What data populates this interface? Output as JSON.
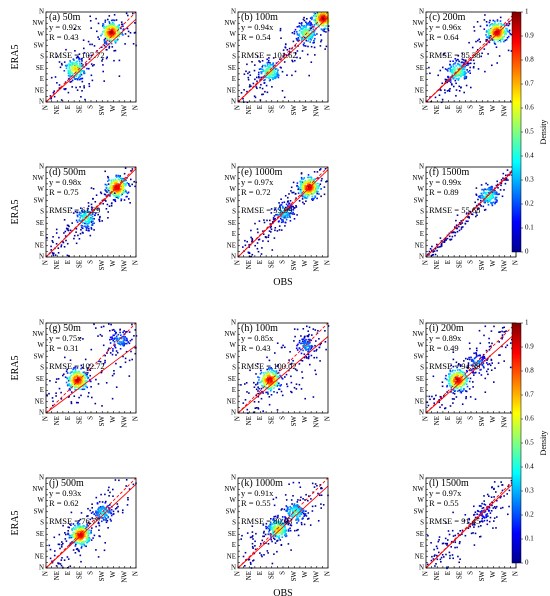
{
  "figure": {
    "colorbar_label": "Density",
    "colorbar_ticks": [
      "1",
      "0.9",
      "0.8",
      "0.7",
      "0.6",
      "0.5",
      "0.4",
      "0.3",
      "0.2",
      "0.1",
      "0"
    ],
    "colormap": [
      "#00008f",
      "#0000ff",
      "#0080ff",
      "#00ffff",
      "#80ff80",
      "#ffff00",
      "#ff8000",
      "#ff0000",
      "#800000"
    ]
  },
  "chart_data": [
    {
      "type": "scatter",
      "panel": "(a) 50m",
      "slope": "y = 0.92x",
      "r": "R = 0.43",
      "rmse": "RMSE = 107.72",
      "xlabel": "",
      "ylabel": "ERA5",
      "clusters": [
        {
          "x": 11.5,
          "y": 12.5,
          "w": 1.0
        },
        {
          "x": 5,
          "y": 6,
          "w": 0.7
        }
      ],
      "spread": 4.5
    },
    {
      "type": "scatter",
      "panel": "(b) 100m",
      "slope": "y = 0.94x",
      "r": "R = 0.54",
      "rmse": "RMSE = 101.62",
      "xlabel": "",
      "ylabel": "",
      "clusters": [
        {
          "x": 15,
          "y": 15,
          "w": 1.0
        },
        {
          "x": 12,
          "y": 12.3,
          "w": 0.6
        },
        {
          "x": 5.5,
          "y": 5.5,
          "w": 0.6
        }
      ],
      "spread": 3.5
    },
    {
      "type": "scatter",
      "panel": "(c) 200m",
      "slope": "y = 0.96x",
      "r": "R = 0.64",
      "rmse": "RMSE = 85.38",
      "xlabel": "",
      "ylabel": "",
      "clusters": [
        {
          "x": 12.5,
          "y": 12.5,
          "w": 1.0
        },
        {
          "x": 5.5,
          "y": 5.5,
          "w": 0.6
        }
      ],
      "spread": 3.0
    },
    {
      "type": "scatter",
      "panel": "(d) 500m",
      "slope": "y = 0.98x",
      "r": "R = 0.75",
      "rmse": "RMSE = 61.29",
      "xlabel": "",
      "ylabel": "ERA5",
      "clusters": [
        {
          "x": 12.5,
          "y": 12.5,
          "w": 1.0
        },
        {
          "x": 7,
          "y": 7,
          "w": 0.5
        }
      ],
      "spread": 2.0
    },
    {
      "type": "scatter",
      "panel": "(e) 1000m",
      "slope": "y = 0.97x",
      "r": "R = 0.72",
      "rmse": "RMSE = 53.99",
      "xlabel": "OBS",
      "ylabel": "",
      "clusters": [
        {
          "x": 12.5,
          "y": 12.5,
          "w": 1.0
        },
        {
          "x": 8,
          "y": 8,
          "w": 0.4
        }
      ],
      "spread": 1.8
    },
    {
      "type": "scatter",
      "panel": "(f) 1500m",
      "slope": "y = 0.99x",
      "r": "R = 0.89",
      "rmse": "RMSE = 55.68",
      "xlabel": "",
      "ylabel": "",
      "clusters": [
        {
          "x": 11,
          "y": 11,
          "w": 0.5
        }
      ],
      "spread": 0.8
    },
    {
      "type": "scatter",
      "panel": "(g) 50m",
      "slope": "y = 0.75x",
      "r": "R = 0.31",
      "rmse": "RMSE = 102.72",
      "xlabel": "",
      "ylabel": "ERA5",
      "clusters": [
        {
          "x": 5.5,
          "y": 6,
          "w": 1.0
        },
        {
          "x": 13,
          "y": 13,
          "w": 0.3
        }
      ],
      "spread": 4.5
    },
    {
      "type": "scatter",
      "panel": "(h) 100m",
      "slope": "y = 0.85x",
      "r": "R = 0.43",
      "rmse": "RMSE = 100.02",
      "xlabel": "",
      "ylabel": "",
      "clusters": [
        {
          "x": 5.5,
          "y": 6,
          "w": 1.0
        },
        {
          "x": 12,
          "y": 12,
          "w": 0.3
        }
      ],
      "spread": 4.0
    },
    {
      "type": "scatter",
      "panel": "(i) 200m",
      "slope": "y = 0.89x",
      "r": "R = 0.49",
      "rmse": "RMSE = 94.39",
      "xlabel": "",
      "ylabel": "",
      "clusters": [
        {
          "x": 5.5,
          "y": 6,
          "w": 1.0
        },
        {
          "x": 9,
          "y": 9,
          "w": 0.3
        }
      ],
      "spread": 3.5
    },
    {
      "type": "scatter",
      "panel": "(j) 500m",
      "slope": "y = 0.93x",
      "r": "R = 0.62",
      "rmse": "RMSE = 76.77",
      "xlabel": "",
      "ylabel": "ERA5",
      "clusters": [
        {
          "x": 6,
          "y": 6,
          "w": 1.0
        },
        {
          "x": 10,
          "y": 10,
          "w": 0.4
        }
      ],
      "spread": 3.0
    },
    {
      "type": "scatter",
      "panel": "(k) 1000m",
      "slope": "y = 0.91x",
      "r": "R = 0.55",
      "rmse": "RMSE = 80.03",
      "xlabel": "OBS",
      "ylabel": "",
      "clusters": [
        {
          "x": 7,
          "y": 7,
          "w": 0.7
        },
        {
          "x": 10,
          "y": 10,
          "w": 0.5
        }
      ],
      "spread": 3.0
    },
    {
      "type": "scatter",
      "panel": "(l) 1500m",
      "slope": "y = 0.97x",
      "r": "R = 0.55",
      "rmse": "RMSE = 91.45",
      "xlabel": "",
      "ylabel": "",
      "clusters": [
        {
          "x": 10,
          "y": 10,
          "w": 0.2
        }
      ],
      "spread": 2.5
    }
  ],
  "axes": {
    "ticks": [
      "N",
      "NNE",
      "NE",
      "ENE",
      "E",
      "ESE",
      "SE",
      "SSE",
      "S",
      "SSW",
      "SW",
      "WSW",
      "W",
      "WNW",
      "NW",
      "NNW",
      "N"
    ],
    "xlim": [
      0,
      16
    ],
    "ylim": [
      0,
      16
    ]
  }
}
